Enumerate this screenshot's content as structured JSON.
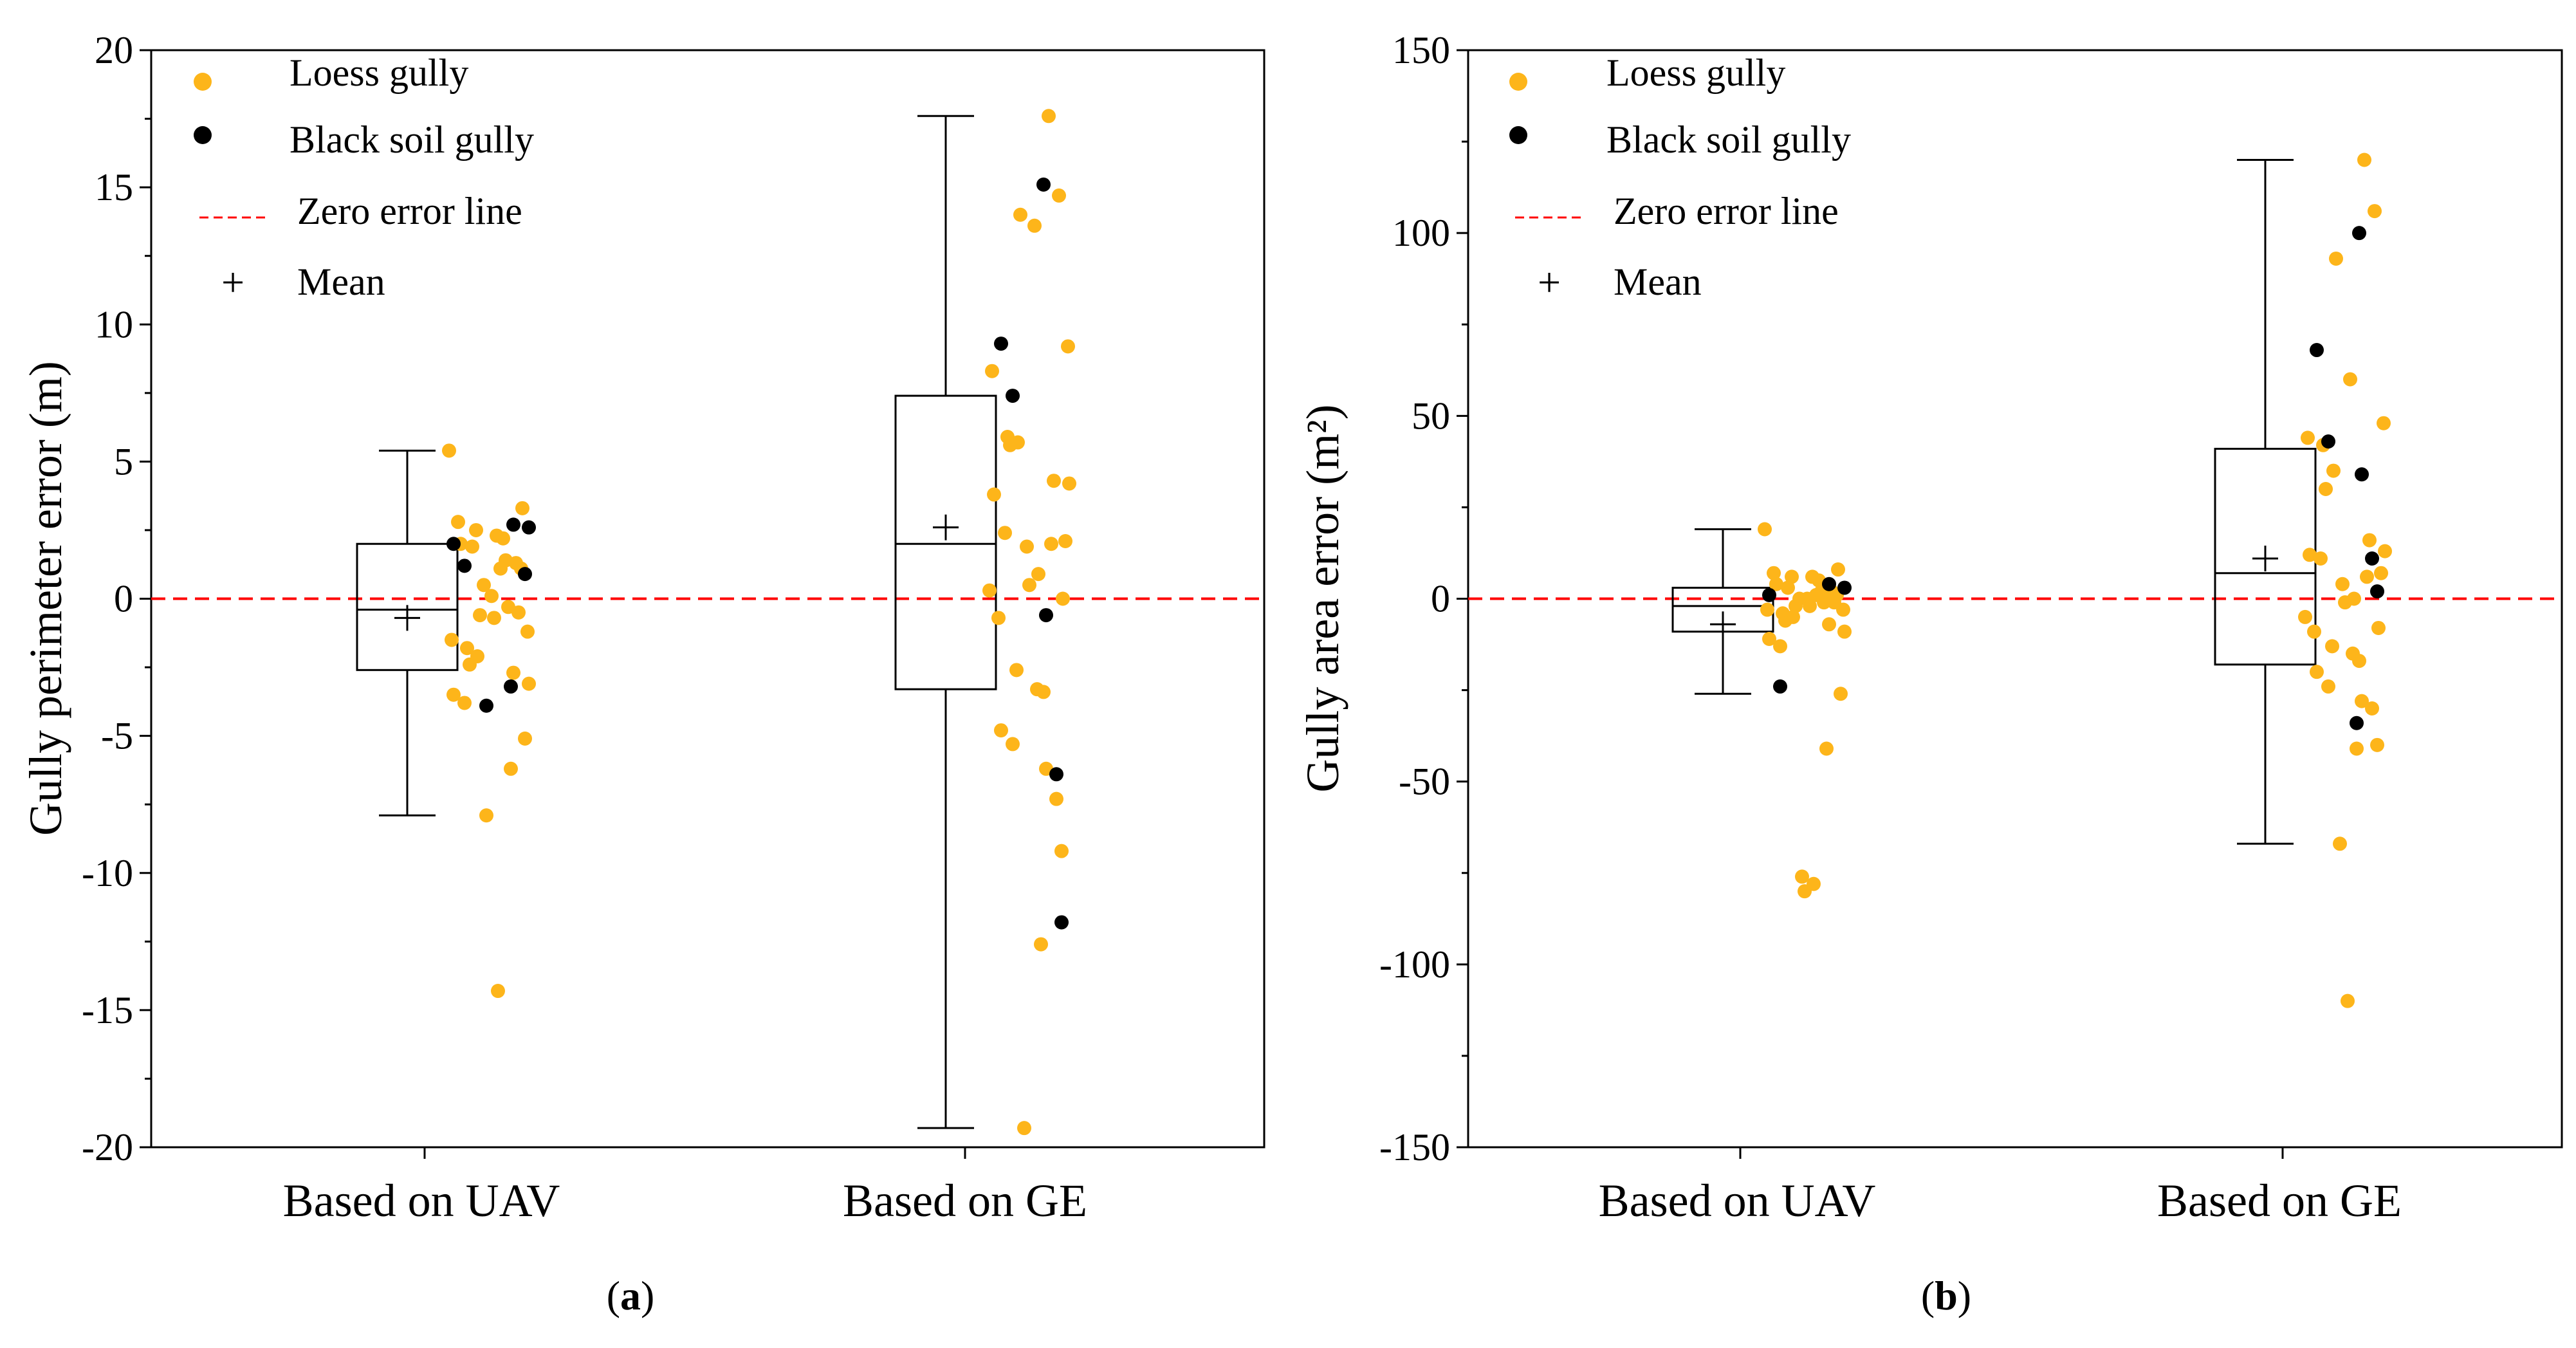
{
  "colors": {
    "loess": "#FDB51A",
    "black": "#000000",
    "zero_line": "#FF0000",
    "axis": "#000000"
  },
  "legend": {
    "loess": "Loess gully",
    "black": "Black soil gully",
    "zero": "Zero error line",
    "mean": "Mean",
    "mean_symbol": "+"
  },
  "chart_data": [
    {
      "id": "a",
      "type": "box+scatter",
      "panel_label": "a",
      "ylabel": "Gully perimeter error (m)",
      "ylim": [
        -20,
        20
      ],
      "yticks": [
        -20,
        -15,
        -10,
        -5,
        0,
        5,
        10,
        15,
        20
      ],
      "categories": [
        "Based on UAV",
        "Based on GE"
      ],
      "boxes": [
        {
          "category": "Based on UAV",
          "min": -7.9,
          "q1": -2.6,
          "median": -0.4,
          "q3": 2.0,
          "max": 5.4,
          "mean": -0.7
        },
        {
          "category": "Based on GE",
          "min": -19.3,
          "q1": -3.3,
          "median": 2.0,
          "q3": 7.4,
          "max": 17.6,
          "mean": 2.6
        }
      ],
      "series": [
        {
          "name": "Loess gully",
          "category": "Based on UAV",
          "values": [
            5.4,
            3.3,
            2.8,
            2.5,
            2.3,
            2.2,
            2.0,
            1.9,
            1.4,
            1.3,
            1.1,
            1.1,
            0.5,
            0.1,
            -0.3,
            -0.5,
            -0.6,
            -0.7,
            -1.2,
            -1.5,
            -1.8,
            -2.1,
            -2.4,
            -2.7,
            -3.1,
            -3.5,
            -3.8,
            -5.1,
            -6.2,
            -7.9,
            -14.3
          ]
        },
        {
          "name": "Black soil gully",
          "category": "Based on UAV",
          "values": [
            2.7,
            2.6,
            2.0,
            1.2,
            0.9,
            -3.2,
            -3.9
          ]
        },
        {
          "name": "Loess gully",
          "category": "Based on GE",
          "values": [
            17.6,
            14.7,
            14.0,
            13.6,
            9.2,
            8.3,
            5.9,
            5.7,
            5.6,
            4.3,
            4.2,
            3.8,
            2.4,
            2.1,
            2.0,
            1.9,
            0.9,
            0.5,
            0.3,
            0.0,
            -0.7,
            -2.6,
            -3.3,
            -3.4,
            -4.8,
            -5.3,
            -6.2,
            -7.3,
            -9.2,
            -12.6,
            -19.3
          ]
        },
        {
          "name": "Black soil gully",
          "category": "Based on GE",
          "values": [
            15.1,
            9.3,
            7.4,
            -0.6,
            -6.4,
            -11.8
          ]
        }
      ]
    },
    {
      "id": "b",
      "type": "box+scatter",
      "panel_label": "b",
      "ylabel": "Gully area error (m²)",
      "ylim": [
        -150,
        150
      ],
      "yticks": [
        -150,
        -100,
        -50,
        0,
        50,
        100,
        150
      ],
      "categories": [
        "Based on UAV",
        "Based on GE"
      ],
      "boxes": [
        {
          "category": "Based on UAV",
          "min": -26,
          "q1": -9,
          "median": -2,
          "q3": 3,
          "max": 19,
          "mean": -7
        },
        {
          "category": "Based on GE",
          "min": -67,
          "q1": -18,
          "median": 7,
          "q3": 41,
          "max": 120,
          "mean": 11
        }
      ],
      "series": [
        {
          "name": "Loess gully",
          "category": "Based on UAV",
          "values": [
            19,
            8,
            7,
            6,
            6,
            5,
            4,
            3,
            2,
            2,
            1,
            1,
            0,
            0,
            -1,
            -1,
            -2,
            -2,
            -3,
            -3,
            -4,
            -5,
            -6,
            -7,
            -9,
            -11,
            -13,
            -26,
            -41,
            -76,
            -78,
            -80
          ]
        },
        {
          "name": "Black soil gully",
          "category": "Based on UAV",
          "values": [
            4,
            3,
            1,
            -24
          ]
        },
        {
          "name": "Loess gully",
          "category": "Based on GE",
          "values": [
            120,
            106,
            93,
            60,
            48,
            44,
            42,
            35,
            30,
            16,
            13,
            12,
            11,
            7,
            6,
            4,
            0,
            -1,
            -5,
            -8,
            -9,
            -13,
            -15,
            -17,
            -20,
            -24,
            -28,
            -30,
            -40,
            -41,
            -67,
            -110
          ]
        },
        {
          "name": "Black soil gully",
          "category": "Based on GE",
          "values": [
            100,
            68,
            43,
            34,
            11,
            2,
            -34
          ]
        }
      ]
    }
  ]
}
